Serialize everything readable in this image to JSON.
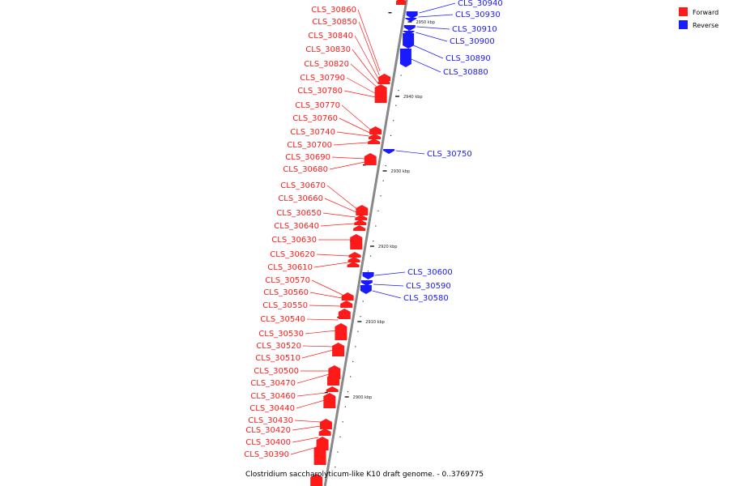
{
  "caption": "Clostridium saccharolyticum-like K10 draft genome. - 0..3769775",
  "legend": [
    {
      "label": "Forward",
      "color": "#ff1a1a"
    },
    {
      "label": "Reverse",
      "color": "#1a1aff"
    }
  ],
  "colors": {
    "forward": "#ff1a1a",
    "reverse": "#1a1aff",
    "backbone": "#888888"
  },
  "ticks": [
    {
      "label": "2950 kbp"
    },
    {
      "label": "2940 kbp"
    },
    {
      "label": "2930 kbp"
    },
    {
      "label": "2920 kbp"
    },
    {
      "label": "2910 kbp"
    },
    {
      "label": "2900 kbp"
    }
  ],
  "genes_forward": [
    "CLS_30860",
    "CLS_30850",
    "CLS_30840",
    "CLS_30830",
    "CLS_30820",
    "CLS_30790",
    "CLS_30780",
    "CLS_30770",
    "CLS_30760",
    "CLS_30740",
    "CLS_30700",
    "CLS_30690",
    "CLS_30680",
    "CLS_30670",
    "CLS_30660",
    "CLS_30650",
    "CLS_30640",
    "CLS_30630",
    "CLS_30620",
    "CLS_30610",
    "CLS_30570",
    "CLS_30560",
    "CLS_30550",
    "CLS_30540",
    "CLS_30530",
    "CLS_30520",
    "CLS_30510",
    "CLS_30500",
    "CLS_30470",
    "CLS_30460",
    "CLS_30440",
    "CLS_30430",
    "CLS_30420",
    "CLS_30400",
    "CLS_30390"
  ],
  "genes_reverse": [
    "CLS_30940",
    "CLS_30930",
    "CLS_30910",
    "CLS_30900",
    "CLS_30890",
    "CLS_30880",
    "CLS_30750",
    "CLS_30600",
    "CLS_30590",
    "CLS_30580"
  ]
}
